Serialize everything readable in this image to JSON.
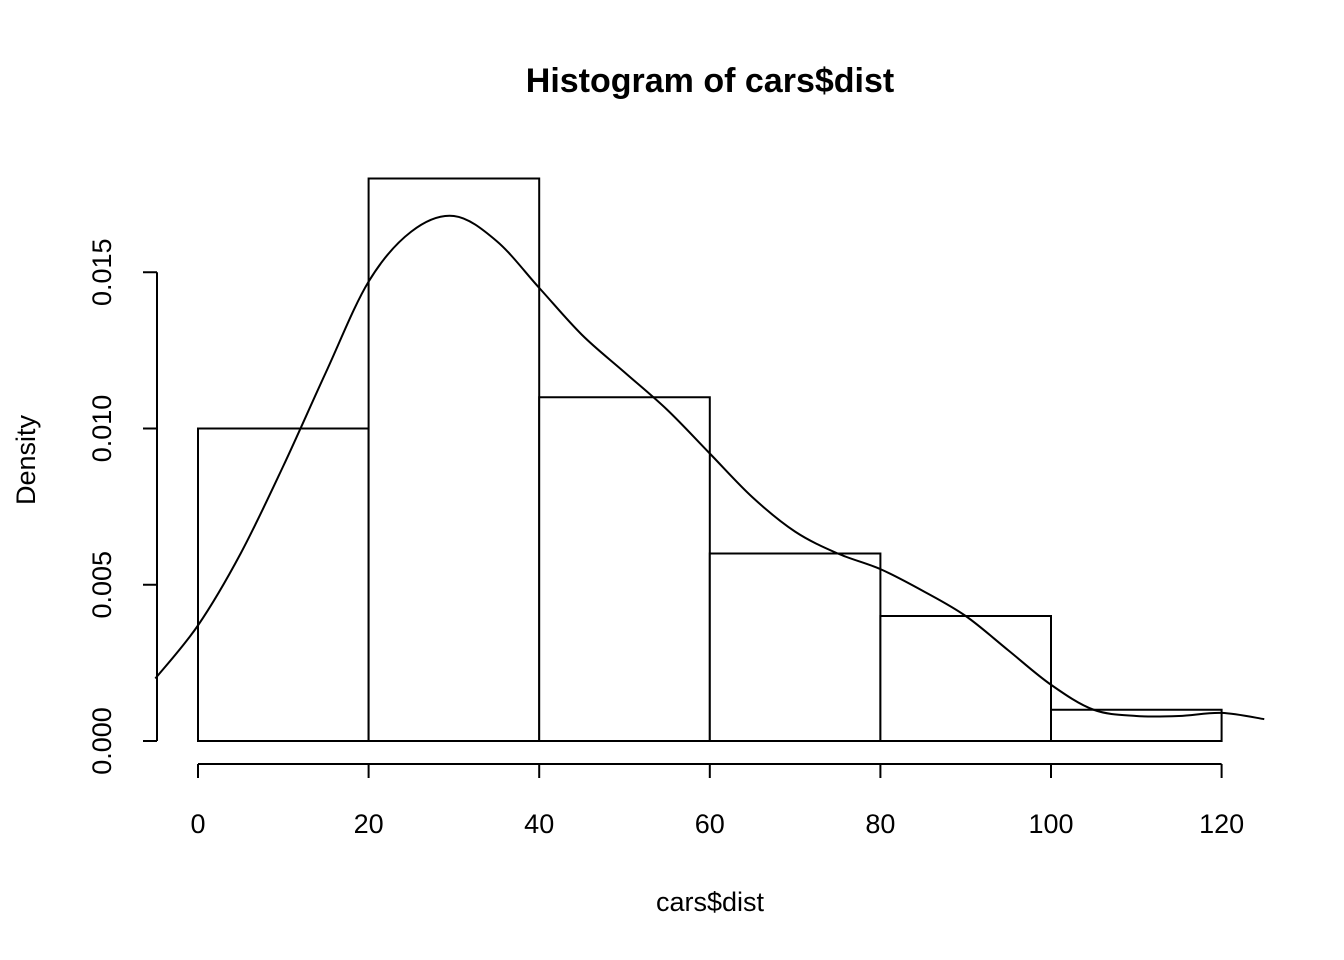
{
  "chart_data": {
    "type": "bar",
    "title": "Histogram of cars$dist",
    "xlabel": "cars$dist",
    "ylabel": "Density",
    "bins": [
      {
        "start": 0,
        "end": 20,
        "density": 0.01
      },
      {
        "start": 20,
        "end": 40,
        "density": 0.018
      },
      {
        "start": 40,
        "end": 60,
        "density": 0.011
      },
      {
        "start": 60,
        "end": 80,
        "density": 0.006
      },
      {
        "start": 80,
        "end": 100,
        "density": 0.004
      },
      {
        "start": 100,
        "end": 120,
        "density": 0.001
      }
    ],
    "x_ticks": [
      0,
      20,
      40,
      60,
      80,
      100,
      120
    ],
    "x_tick_labels": [
      "0",
      "20",
      "40",
      "60",
      "80",
      "100",
      "120"
    ],
    "y_ticks": [
      0.0,
      0.005,
      0.01,
      0.015
    ],
    "y_tick_labels": [
      "0.000",
      "0.005",
      "0.010",
      "0.015"
    ],
    "xlim": [
      -5,
      125
    ],
    "ylim": [
      0,
      0.018
    ],
    "grid": false,
    "legend": "none",
    "density_curve": {
      "x": [
        -5,
        0,
        5,
        10,
        15,
        20,
        25,
        30,
        35,
        40,
        45,
        50,
        55,
        60,
        65,
        70,
        75,
        80,
        85,
        90,
        95,
        100,
        105,
        110,
        115,
        120,
        125
      ],
      "y": [
        0.002,
        0.0037,
        0.006,
        0.0088,
        0.0118,
        0.0147,
        0.0163,
        0.0168,
        0.016,
        0.0145,
        0.013,
        0.0118,
        0.0106,
        0.0092,
        0.0078,
        0.0067,
        0.006,
        0.0055,
        0.0048,
        0.004,
        0.0029,
        0.0018,
        0.001,
        0.0008,
        0.0008,
        0.0009,
        0.0007
      ]
    }
  }
}
